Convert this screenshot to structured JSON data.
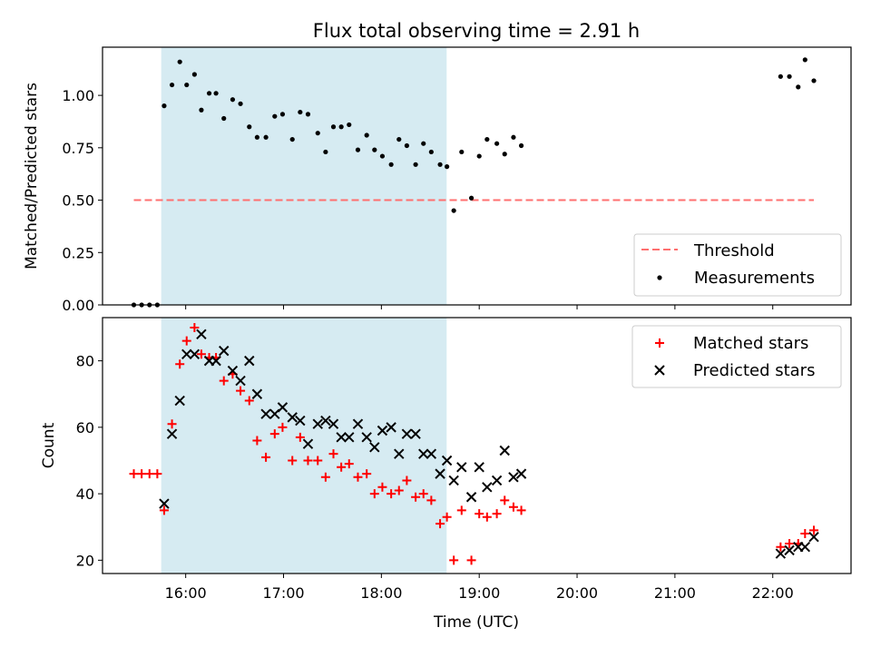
{
  "title": "Flux total observing time = 2.91 h",
  "colors": {
    "shade": "#add8e6",
    "threshold": "#ff6f6f",
    "measurement": "#000000",
    "matched": "#ff0000",
    "predicted": "#000000"
  },
  "chart_data": [
    {
      "type": "scatter",
      "ylabel": "Matched/Predicted stars",
      "xlim": [
        15.15,
        22.8
      ],
      "ylim": [
        0.0,
        1.23
      ],
      "yticks": [
        0.0,
        0.25,
        0.5,
        0.75,
        1.0
      ],
      "ytick_labels": [
        "0.00",
        "0.25",
        "0.50",
        "0.75",
        "1.00"
      ],
      "shaded_span": [
        15.75,
        18.667
      ],
      "threshold": {
        "name": "Threshold",
        "value": 0.5,
        "x_range": [
          15.47,
          22.42
        ]
      },
      "legend": [
        "Threshold",
        "Measurements"
      ],
      "legend_loc": "lower-right",
      "series": [
        {
          "name": "Measurements",
          "x": [
            15.47,
            15.55,
            15.63,
            15.71,
            15.78,
            15.86,
            15.94,
            16.01,
            16.09,
            16.16,
            16.24,
            16.31,
            16.39,
            16.48,
            16.56,
            16.65,
            16.73,
            16.82,
            16.91,
            16.99,
            17.09,
            17.17,
            17.25,
            17.35,
            17.43,
            17.51,
            17.59,
            17.67,
            17.76,
            17.85,
            17.93,
            18.01,
            18.1,
            18.18,
            18.26,
            18.35,
            18.43,
            18.51,
            18.6,
            18.67,
            18.74,
            18.82,
            18.92,
            19.0,
            19.08,
            19.18,
            19.26,
            19.35,
            19.43,
            22.08,
            22.17,
            22.26,
            22.33,
            22.42
          ],
          "y": [
            0.0,
            0.0,
            0.0,
            0.0,
            0.95,
            1.05,
            1.16,
            1.05,
            1.1,
            0.93,
            1.01,
            1.01,
            0.89,
            0.98,
            0.96,
            0.85,
            0.8,
            0.8,
            0.9,
            0.91,
            0.79,
            0.92,
            0.91,
            0.82,
            0.73,
            0.85,
            0.85,
            0.86,
            0.74,
            0.81,
            0.74,
            0.71,
            0.67,
            0.79,
            0.76,
            0.67,
            0.77,
            0.73,
            0.67,
            0.66,
            0.45,
            0.73,
            0.51,
            0.71,
            0.79,
            0.77,
            0.72,
            0.8,
            0.76,
            1.09,
            1.09,
            1.04,
            1.17,
            1.07
          ]
        }
      ]
    },
    {
      "type": "scatter",
      "xlabel": "Time (UTC)",
      "ylabel": "Count",
      "xlim": [
        15.15,
        22.8
      ],
      "ylim": [
        16,
        93
      ],
      "yticks": [
        20,
        40,
        60,
        80
      ],
      "xticks": [
        16,
        17,
        18,
        19,
        20,
        21,
        22
      ],
      "xtick_labels": [
        "16:00",
        "17:00",
        "18:00",
        "19:00",
        "20:00",
        "21:00",
        "22:00"
      ],
      "shaded_span": [
        15.75,
        18.667
      ],
      "legend": [
        "Matched stars",
        "Predicted stars"
      ],
      "legend_loc": "upper-right",
      "series": [
        {
          "name": "Matched stars",
          "marker": "+",
          "x": [
            15.47,
            15.55,
            15.63,
            15.71,
            15.78,
            15.86,
            15.94,
            16.01,
            16.09,
            16.16,
            16.24,
            16.31,
            16.39,
            16.48,
            16.56,
            16.65,
            16.73,
            16.82,
            16.91,
            16.99,
            17.09,
            17.17,
            17.25,
            17.35,
            17.43,
            17.51,
            17.59,
            17.67,
            17.76,
            17.85,
            17.93,
            18.01,
            18.1,
            18.18,
            18.26,
            18.35,
            18.43,
            18.51,
            18.6,
            18.67,
            18.74,
            18.82,
            18.92,
            19.0,
            19.08,
            19.18,
            19.26,
            19.35,
            19.43,
            22.08,
            22.17,
            22.26,
            22.33,
            22.42
          ],
          "y": [
            46,
            46,
            46,
            46,
            35,
            61,
            79,
            86,
            90,
            82,
            81,
            81,
            74,
            76,
            71,
            68,
            56,
            51,
            58,
            60,
            50,
            57,
            50,
            50,
            45,
            52,
            48,
            49,
            45,
            46,
            40,
            42,
            40,
            41,
            44,
            39,
            40,
            38,
            31,
            33,
            20,
            35,
            20,
            34,
            33,
            34,
            38,
            36,
            35,
            24,
            25,
            25,
            28,
            29
          ]
        },
        {
          "name": "Predicted stars",
          "marker": "x",
          "x": [
            15.78,
            15.86,
            15.94,
            16.01,
            16.09,
            16.16,
            16.24,
            16.31,
            16.39,
            16.48,
            16.56,
            16.65,
            16.73,
            16.82,
            16.91,
            16.99,
            17.09,
            17.17,
            17.25,
            17.35,
            17.43,
            17.51,
            17.59,
            17.67,
            17.76,
            17.85,
            17.93,
            18.01,
            18.1,
            18.18,
            18.26,
            18.35,
            18.43,
            18.51,
            18.6,
            18.67,
            18.74,
            18.82,
            18.92,
            19.0,
            19.08,
            19.18,
            19.26,
            19.35,
            19.43,
            22.08,
            22.17,
            22.26,
            22.33,
            22.42
          ],
          "y": [
            37,
            58,
            68,
            82,
            82,
            88,
            80,
            80,
            83,
            77,
            74,
            80,
            70,
            64,
            64,
            66,
            63,
            62,
            55,
            61,
            62,
            61,
            57,
            57,
            61,
            57,
            54,
            59,
            60,
            52,
            58,
            58,
            52,
            52,
            46,
            50,
            44,
            48,
            39,
            48,
            42,
            44,
            53,
            45,
            46,
            22,
            23,
            24,
            24,
            27
          ]
        }
      ]
    }
  ]
}
